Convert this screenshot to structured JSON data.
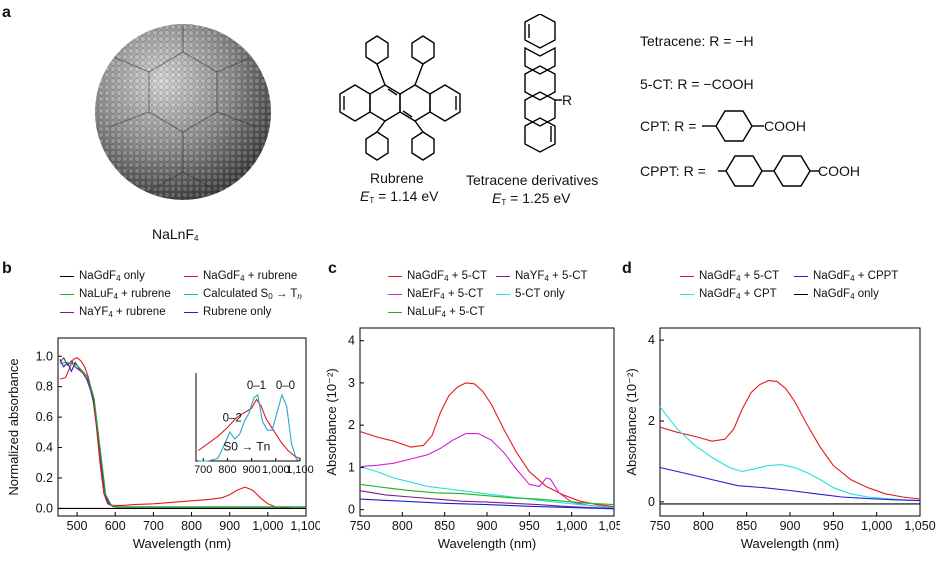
{
  "panel_a": {
    "label": "a",
    "nanoparticle_caption": "NaLnF4",
    "rubrene": {
      "name": "Rubrene",
      "energy_symbol": "E",
      "energy_sub": "T",
      "energy_value": " = 1.14 eV"
    },
    "tetracene": {
      "name": "Tetracene derivatives",
      "energy_symbol": "E",
      "energy_sub": "T",
      "energy_value": " = 1.25 eV",
      "r_label": "R"
    },
    "substituents": [
      {
        "prefix": "Tetracene:",
        "text": "R = −H"
      },
      {
        "prefix": "5-CT:",
        "text": "R = −COOH"
      },
      {
        "prefix": "CPT:",
        "text": "R =",
        "tail": "COOH"
      },
      {
        "prefix": "CPPT:",
        "text": "R =",
        "tail": "COOH"
      }
    ]
  },
  "chart_data": [
    {
      "panel": "b",
      "type": "line",
      "xlabel": "Wavelength (nm)",
      "ylabel": "Normalized absorbance",
      "xlim": [
        450,
        1100
      ],
      "ylim": [
        -0.05,
        1.12
      ],
      "xticks": [
        "500",
        "600",
        "700",
        "800",
        "900",
        "1,000",
        "1,100"
      ],
      "yticks": [
        "0.0",
        "0.2",
        "0.4",
        "0.6",
        "0.8",
        "1.0"
      ],
      "legend": [
        {
          "name": "NaGdF4 only",
          "color": "#000000"
        },
        {
          "name": "NaGdF4 + rubrene",
          "color": "#e31a1c"
        },
        {
          "name": "NaLuF4 + rubrene",
          "color": "#1db31d"
        },
        {
          "name": "Calculated S0 → Tn",
          "color": "#2aa7c9"
        },
        {
          "name": "NaYF4 + rubrene",
          "color": "#7a1f8a"
        },
        {
          "name": "Rubrene only",
          "color": "#1f1fd6"
        }
      ],
      "series": [
        {
          "name": "NaGdF4 + rubrene",
          "color": "#e31a1c",
          "x": [
            455,
            470,
            480,
            490,
            500,
            510,
            520,
            530,
            540,
            550,
            560,
            570,
            580,
            590,
            600,
            620,
            650,
            700,
            750,
            800,
            850,
            880,
            900,
            920,
            940,
            960,
            980,
            1000,
            1020,
            1040,
            1060
          ],
          "y": [
            0.85,
            0.86,
            0.92,
            0.98,
            0.99,
            0.97,
            0.93,
            0.86,
            0.75,
            0.55,
            0.3,
            0.1,
            0.03,
            0.02,
            0.02,
            0.02,
            0.025,
            0.03,
            0.04,
            0.05,
            0.06,
            0.07,
            0.09,
            0.12,
            0.14,
            0.12,
            0.07,
            0.03,
            0.01,
            0.005,
            0.0
          ]
        },
        {
          "name": "Rubrene only",
          "color": "#1f1fd6",
          "x": [
            455,
            465,
            475,
            485,
            495,
            505,
            515,
            525,
            535,
            545,
            555,
            565,
            575,
            585,
            595,
            610,
            650,
            700,
            800,
            1000,
            1100
          ],
          "y": [
            0.98,
            0.93,
            0.96,
            0.9,
            0.96,
            0.92,
            0.9,
            0.87,
            0.8,
            0.7,
            0.5,
            0.25,
            0.08,
            0.03,
            0.015,
            0.01,
            0.01,
            0.01,
            0.01,
            0.01,
            0.01
          ]
        },
        {
          "name": "NaYF4 + rubrene",
          "color": "#7a1f8a",
          "x": [
            455,
            465,
            475,
            485,
            495,
            505,
            515,
            525,
            535,
            545,
            555,
            565,
            575,
            585,
            595,
            610,
            650,
            700,
            800,
            1000,
            1100
          ],
          "y": [
            0.96,
            0.99,
            0.94,
            0.97,
            0.93,
            0.91,
            0.89,
            0.85,
            0.78,
            0.68,
            0.48,
            0.23,
            0.07,
            0.025,
            0.012,
            0.008,
            0.008,
            0.008,
            0.008,
            0.008,
            0.008
          ]
        },
        {
          "name": "NaLuF4 + rubrene",
          "color": "#1db31d",
          "x": [
            455,
            470,
            485,
            500,
            515,
            530,
            545,
            560,
            575,
            590,
            610,
            650,
            700,
            800,
            1000,
            1100
          ],
          "y": [
            0.95,
            0.96,
            0.95,
            0.94,
            0.9,
            0.85,
            0.72,
            0.4,
            0.09,
            0.02,
            0.01,
            0.01,
            0.01,
            0.01,
            0.01,
            0.01
          ]
        },
        {
          "name": "NaGdF4 only",
          "color": "#000000",
          "x": [
            450,
            600,
            800,
            1000,
            1100
          ],
          "y": [
            0.0,
            0.0,
            0.0,
            0.0,
            0.0
          ]
        }
      ],
      "inset": {
        "xticks": [
          "700",
          "800",
          "900",
          "1,000",
          "1,100"
        ],
        "xlim": [
          670,
          1100
        ],
        "ylim": [
          0,
          1.0
        ],
        "annotations": [
          "0–2",
          "0–1",
          "0–0"
        ],
        "transition_text": "S0 → Tn",
        "series": [
          {
            "name": "NaGdF4 + rubrene",
            "color": "#e31a1c",
            "x": [
              680,
              720,
              760,
              800,
              840,
              870,
              900,
              920,
              940,
              960,
              990,
              1020,
              1050,
              1080,
              1100
            ],
            "y": [
              0.12,
              0.2,
              0.28,
              0.38,
              0.5,
              0.55,
              0.6,
              0.7,
              0.62,
              0.48,
              0.35,
              0.22,
              0.12,
              0.05,
              0.03
            ]
          },
          {
            "name": "Calculated S0 → Tn",
            "color": "#2aa7c9",
            "x": [
              680,
              720,
              760,
              790,
              810,
              830,
              850,
              870,
              890,
              910,
              925,
              945,
              965,
              985,
              1005,
              1025,
              1045,
              1065,
              1085,
              1100
            ],
            "y": [
              0.0,
              0.0,
              0.03,
              0.2,
              0.33,
              0.25,
              0.3,
              0.45,
              0.55,
              0.72,
              0.75,
              0.45,
              0.35,
              0.35,
              0.55,
              0.75,
              0.62,
              0.2,
              0.02,
              0.0
            ]
          }
        ]
      }
    },
    {
      "panel": "c",
      "type": "line",
      "xlabel": "Wavelength (nm)",
      "ylabel": "Absorbance (10⁻²)",
      "xlim": [
        750,
        1050
      ],
      "ylim": [
        -0.15,
        4.3
      ],
      "xticks": [
        "750",
        "800",
        "850",
        "900",
        "950",
        "1,000",
        "1,050"
      ],
      "yticks": [
        "0",
        "1",
        "2",
        "3",
        "4"
      ],
      "legend": [
        {
          "name": "NaGdF4 + 5-CT",
          "color": "#e31a1c"
        },
        {
          "name": "NaYF4 + 5-CT",
          "color": "#7a1f8a"
        },
        {
          "name": "NaErF4 + 5-CT",
          "color": "#d61fd6"
        },
        {
          "name": "5-CT only",
          "color": "#22e0e0"
        },
        {
          "name": "NaLuF4 + 5-CT",
          "color": "#1db31d"
        }
      ],
      "series": [
        {
          "name": "NaGdF4 + 5-CT",
          "color": "#e31a1c",
          "x": [
            750,
            770,
            790,
            810,
            825,
            835,
            845,
            855,
            865,
            875,
            885,
            895,
            905,
            920,
            935,
            950,
            970,
            990,
            1010,
            1030,
            1050
          ],
          "y": [
            1.85,
            1.72,
            1.62,
            1.48,
            1.52,
            1.75,
            2.3,
            2.7,
            2.9,
            3.0,
            2.98,
            2.8,
            2.5,
            1.9,
            1.35,
            0.9,
            0.55,
            0.35,
            0.2,
            0.12,
            0.07
          ]
        },
        {
          "name": "NaErF4 + 5-CT",
          "color": "#d61fd6",
          "x": [
            750,
            770,
            790,
            810,
            830,
            845,
            860,
            875,
            890,
            905,
            920,
            935,
            950,
            962,
            970,
            975,
            985,
            1000,
            1020,
            1050
          ],
          "y": [
            1.02,
            1.05,
            1.1,
            1.2,
            1.3,
            1.45,
            1.65,
            1.8,
            1.8,
            1.65,
            1.35,
            0.95,
            0.6,
            0.55,
            0.75,
            0.72,
            0.4,
            0.18,
            0.1,
            0.05
          ]
        },
        {
          "name": "5-CT only",
          "color": "#22e0e0",
          "x": [
            750,
            770,
            790,
            810,
            830,
            850,
            870,
            890,
            910,
            930,
            950,
            970,
            990,
            1010,
            1030,
            1050
          ],
          "y": [
            1.02,
            0.9,
            0.75,
            0.65,
            0.55,
            0.5,
            0.45,
            0.4,
            0.35,
            0.3,
            0.25,
            0.2,
            0.16,
            0.12,
            0.08,
            0.05
          ]
        },
        {
          "name": "NaLuF4 + 5-CT",
          "color": "#1db31d",
          "x": [
            750,
            780,
            810,
            840,
            870,
            900,
            930,
            960,
            990,
            1020,
            1050
          ],
          "y": [
            0.6,
            0.52,
            0.45,
            0.4,
            0.38,
            0.33,
            0.28,
            0.25,
            0.2,
            0.15,
            0.12
          ]
        },
        {
          "name": "NaYF4 + 5-CT",
          "color": "#7a1f8a",
          "x": [
            750,
            780,
            810,
            840,
            870,
            900,
            930,
            960,
            990,
            1020,
            1050
          ],
          "y": [
            0.45,
            0.35,
            0.3,
            0.25,
            0.2,
            0.18,
            0.15,
            0.12,
            0.08,
            0.05,
            0.03
          ]
        },
        {
          "name": "baseline",
          "color": "#1f1fd6",
          "x": [
            750,
            800,
            850,
            900,
            950,
            1000,
            1050
          ],
          "y": [
            0.25,
            0.2,
            0.15,
            0.12,
            0.08,
            0.05,
            0.02
          ]
        }
      ]
    },
    {
      "panel": "d",
      "type": "line",
      "xlabel": "Wavelength (nm)",
      "ylabel": "Absorbance (10⁻²)",
      "xlim": [
        750,
        1050
      ],
      "ylim": [
        -0.35,
        4.3
      ],
      "xticks": [
        "750",
        "800",
        "850",
        "900",
        "950",
        "1,000",
        "1,050"
      ],
      "yticks": [
        "0",
        "2",
        "4"
      ],
      "legend": [
        {
          "name": "NaGdF4 + 5-CT",
          "color": "#e31a1c"
        },
        {
          "name": "NaGdF4 + CPPT",
          "color": "#1f1fd6"
        },
        {
          "name": "NaGdF4 + CPT",
          "color": "#22e0e0"
        },
        {
          "name": "NaGdF4 only",
          "color": "#000000"
        }
      ],
      "series": [
        {
          "name": "NaGdF4 + 5-CT",
          "color": "#e31a1c",
          "x": [
            750,
            770,
            790,
            810,
            825,
            835,
            845,
            855,
            865,
            875,
            885,
            895,
            905,
            920,
            935,
            950,
            970,
            990,
            1010,
            1030,
            1050
          ],
          "y": [
            1.85,
            1.72,
            1.62,
            1.5,
            1.55,
            1.8,
            2.3,
            2.7,
            2.9,
            3.0,
            2.98,
            2.8,
            2.5,
            1.9,
            1.35,
            0.9,
            0.55,
            0.35,
            0.2,
            0.12,
            0.07
          ]
        },
        {
          "name": "NaGdF4 + CPT",
          "color": "#22e0e0",
          "x": [
            750,
            770,
            790,
            810,
            830,
            845,
            860,
            875,
            890,
            905,
            920,
            935,
            950,
            970,
            990,
            1010,
            1030,
            1050
          ],
          "y": [
            2.35,
            1.8,
            1.4,
            1.1,
            0.85,
            0.75,
            0.82,
            0.9,
            0.92,
            0.85,
            0.72,
            0.55,
            0.35,
            0.2,
            0.12,
            0.08,
            0.05,
            0.03
          ]
        },
        {
          "name": "NaGdF4 + CPPT",
          "color": "#1f1fd6",
          "x": [
            750,
            780,
            810,
            840,
            870,
            900,
            930,
            960,
            990,
            1020,
            1050
          ],
          "y": [
            0.85,
            0.7,
            0.55,
            0.4,
            0.35,
            0.28,
            0.2,
            0.12,
            0.08,
            0.05,
            0.03
          ]
        },
        {
          "name": "NaGdF4 only",
          "color": "#000000",
          "x": [
            750,
            800,
            850,
            900,
            950,
            1000,
            1050
          ],
          "y": [
            -0.05,
            -0.05,
            -0.05,
            -0.05,
            -0.05,
            -0.05,
            -0.05
          ]
        }
      ]
    }
  ]
}
